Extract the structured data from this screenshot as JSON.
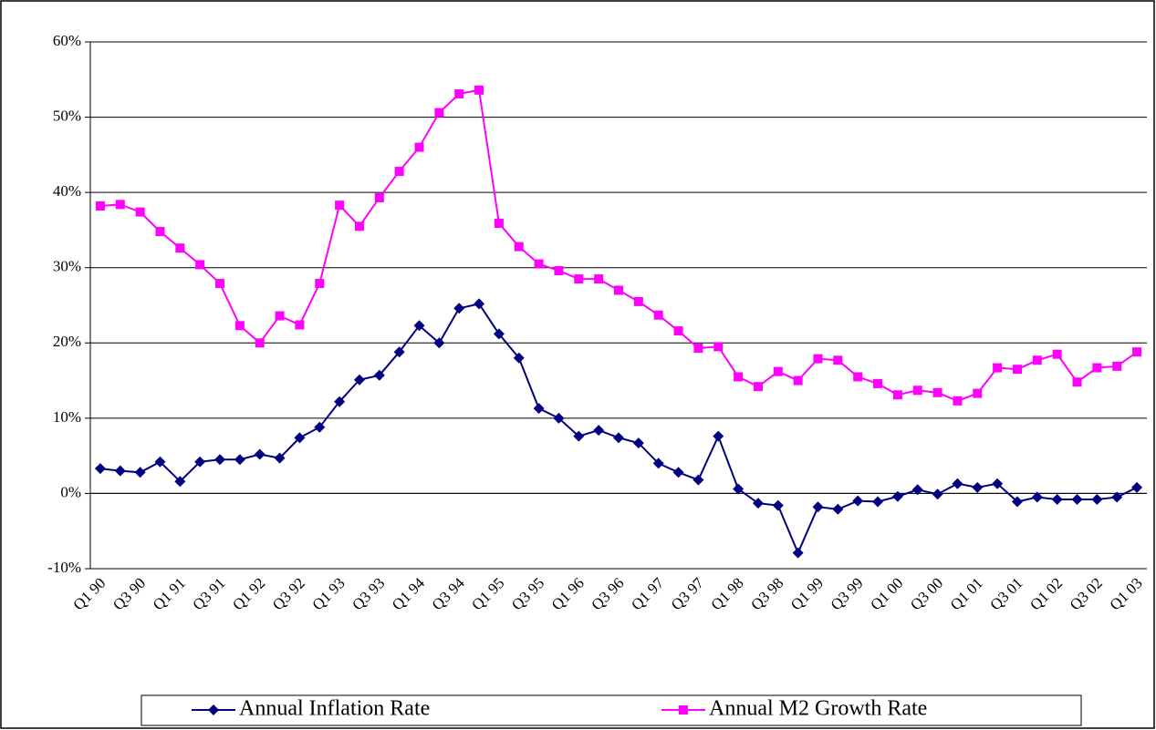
{
  "chart_data": {
    "type": "line",
    "categories": [
      "Q1 90",
      null,
      "Q3 90",
      null,
      "Q1 91",
      null,
      "Q3 91",
      null,
      "Q1 92",
      null,
      "Q3 92",
      null,
      "Q1 93",
      null,
      "Q3 93",
      null,
      "Q1 94",
      null,
      "Q3 94",
      null,
      "Q1 95",
      null,
      "Q3 95",
      null,
      "Q1 96",
      null,
      "Q3 96",
      null,
      "Q1 97",
      null,
      "Q3 97",
      null,
      "Q1 98",
      null,
      "Q3 98",
      null,
      "Q1 99",
      null,
      "Q3 99",
      null,
      "Q1 00",
      null,
      "Q3 00",
      null,
      "Q1 01",
      null,
      "Q3 01",
      null,
      "Q1 02",
      null,
      "Q3 02",
      null,
      "Q1 03"
    ],
    "series": [
      {
        "name": "Annual Inflation Rate",
        "color": "#000080",
        "marker": "diamond",
        "values": [
          3.3,
          3.0,
          2.8,
          4.2,
          1.6,
          4.2,
          4.5,
          4.5,
          5.2,
          4.7,
          7.4,
          8.8,
          12.2,
          15.1,
          15.7,
          18.8,
          22.3,
          20.0,
          24.6,
          25.2,
          21.2,
          18.0,
          11.3,
          10.0,
          7.6,
          8.4,
          7.4,
          6.7,
          4.0,
          2.8,
          1.8,
          7.6,
          0.6,
          -1.3,
          -1.6,
          -7.9,
          -1.8,
          -2.1,
          -1.0,
          -1.1,
          -0.4,
          0.5,
          -0.1,
          1.3,
          0.8,
          1.3,
          -1.1,
          -0.5,
          -0.8,
          -0.8,
          -0.8,
          -0.5,
          0.8
        ]
      },
      {
        "name": "Annual M2 Growth Rate",
        "color": "#ff00ff",
        "marker": "square",
        "values": [
          38.2,
          38.4,
          37.4,
          34.8,
          32.6,
          30.4,
          27.9,
          22.3,
          20.0,
          23.6,
          22.4,
          27.9,
          38.3,
          35.5,
          39.3,
          42.8,
          46.0,
          50.6,
          53.1,
          53.6,
          35.9,
          32.8,
          30.5,
          29.6,
          28.5,
          28.5,
          27.0,
          25.5,
          23.7,
          21.6,
          19.3,
          19.5,
          15.5,
          14.2,
          16.2,
          15.0,
          17.9,
          17.7,
          15.5,
          14.6,
          13.1,
          13.7,
          13.4,
          12.3,
          13.3,
          16.7,
          16.5,
          17.7,
          18.5,
          14.8,
          16.7,
          16.9,
          18.8
        ]
      }
    ],
    "ylim": [
      -10,
      60
    ],
    "yticks": [
      {
        "value": -10,
        "label": "-10%"
      },
      {
        "value": 0,
        "label": "0%"
      },
      {
        "value": 10,
        "label": "10%"
      },
      {
        "value": 20,
        "label": "20%"
      },
      {
        "value": 30,
        "label": "30%"
      },
      {
        "value": 40,
        "label": "40%"
      },
      {
        "value": 50,
        "label": "50%"
      },
      {
        "value": 60,
        "label": "60%"
      }
    ],
    "grid": true,
    "legend": "bottom"
  }
}
